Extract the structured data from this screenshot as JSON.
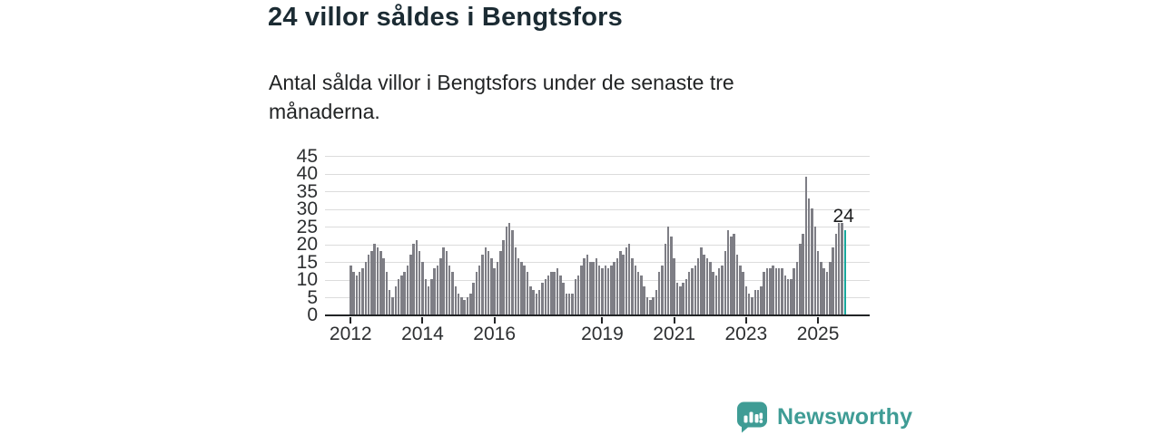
{
  "header": {
    "title": "24 villor såldes i Bengtsfors",
    "subtitle": "Antal sålda villor i Bengtsfors under de senaste tre månaderna."
  },
  "chart_data": {
    "type": "bar",
    "title": "24 villor såldes i Bengtsfors",
    "subtitle": "Antal sålda villor i Bengtsfors under de senaste tre månaderna.",
    "ylabel": "",
    "xlabel": "",
    "ylim": [
      0,
      45
    ],
    "yticks": [
      0,
      5,
      10,
      15,
      20,
      25,
      30,
      35,
      40,
      45
    ],
    "grid": true,
    "gridline_color": "#dcdcdc",
    "bar_color": "#7e7e85",
    "highlight_color": "#18a79c",
    "start_month": "2012-01",
    "end_month": "2025-10",
    "values": [
      14,
      12,
      11,
      12,
      13,
      15,
      17,
      18,
      20,
      19,
      18,
      16,
      12,
      7,
      5,
      8,
      10,
      11,
      12,
      14,
      17,
      20,
      21,
      18,
      15,
      10,
      8,
      10,
      13,
      14,
      16,
      19,
      18,
      14,
      12,
      8,
      6,
      5,
      4,
      5,
      6,
      9,
      12,
      14,
      17,
      19,
      18,
      16,
      13,
      15,
      18,
      21,
      25,
      26,
      24,
      19,
      16,
      15,
      14,
      12,
      8,
      7,
      6,
      7,
      9,
      10,
      11,
      12,
      12,
      13,
      11,
      9,
      6,
      6,
      6,
      10,
      11,
      14,
      16,
      17,
      15,
      15,
      16,
      14,
      13,
      14,
      13,
      14,
      15,
      16,
      18,
      17,
      19,
      20,
      16,
      14,
      12,
      11,
      8,
      5,
      4,
      5,
      7,
      12,
      14,
      20,
      25,
      22,
      16,
      9,
      8,
      9,
      10,
      12,
      13,
      14,
      16,
      19,
      17,
      16,
      15,
      12,
      11,
      13,
      14,
      18,
      24,
      22,
      23,
      17,
      14,
      12,
      8,
      6,
      5,
      7,
      7,
      8,
      12,
      13,
      13,
      14,
      13,
      13,
      13,
      11,
      10,
      10,
      13,
      15,
      20,
      23,
      39,
      33,
      30,
      25,
      18,
      15,
      13,
      12,
      15,
      19,
      23,
      26,
      26,
      24
    ],
    "highlight": {
      "index": 165,
      "value": 24,
      "label": "24"
    },
    "xticks": [
      {
        "label": "2012",
        "month_index": 0
      },
      {
        "label": "2014",
        "month_index": 24
      },
      {
        "label": "2016",
        "month_index": 48
      },
      {
        "label": "2019",
        "month_index": 84
      },
      {
        "label": "2021",
        "month_index": 108
      },
      {
        "label": "2023",
        "month_index": 132
      },
      {
        "label": "2025",
        "month_index": 156
      }
    ],
    "legend": []
  },
  "footer": {
    "brand": "Newsworthy",
    "brand_color": "#3f9c95",
    "logo_icon": "bar-chart-speech-bubble"
  }
}
